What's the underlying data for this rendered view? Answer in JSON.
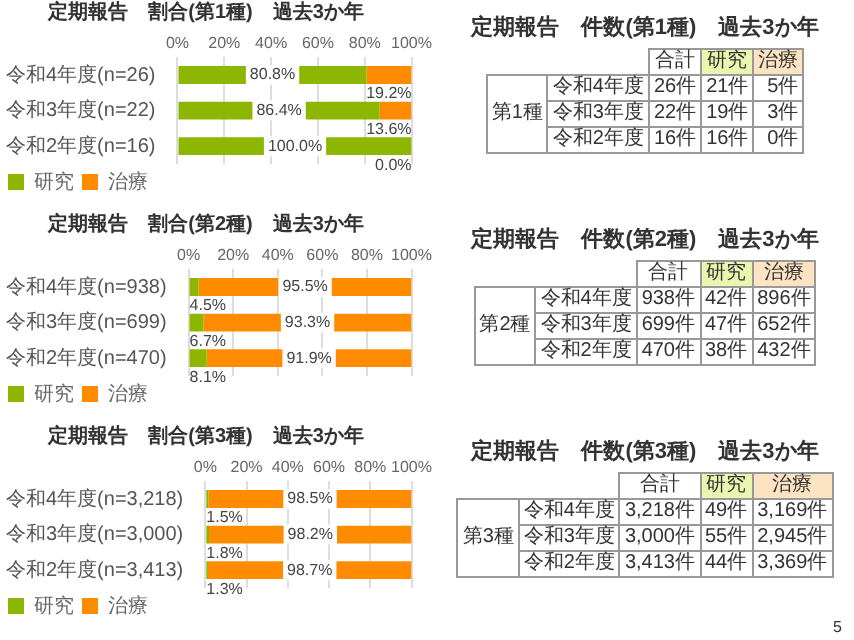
{
  "chart_data": [
    {
      "type": "bar",
      "title": "定期報告　割合(第1種)　過去3か年",
      "orientation": "horizontal",
      "stacked": true,
      "categories": [
        "令和4年度(n=26)",
        "令和3年度(n=22)",
        "令和2年度(n=16)"
      ],
      "series": [
        {
          "name": "研究",
          "color": "#8db600",
          "values": [
            80.8,
            86.4,
            100.0
          ],
          "value_labels": [
            "80.8%",
            "86.4%",
            "100.0%"
          ]
        },
        {
          "name": "治療",
          "color": "#ff8c00",
          "values": [
            19.2,
            13.6,
            0.0
          ],
          "value_labels": [
            "19.2%",
            "13.6%",
            "0.0%"
          ]
        }
      ],
      "xlim": [
        0,
        100
      ],
      "xticks": [
        {
          "value": 0,
          "label": "0%"
        },
        {
          "value": 20,
          "label": "20%"
        },
        {
          "value": 40,
          "label": "40%"
        },
        {
          "value": 60,
          "label": "60%"
        },
        {
          "value": 80,
          "label": "80%"
        },
        {
          "value": 100,
          "label": "100%"
        }
      ],
      "grid": "x",
      "legend": "bottom left"
    },
    {
      "type": "other",
      "title": "定期報告　件数(第1種)　過去3か年",
      "ylabel": "第1種",
      "categories": [
        "合計",
        "研究",
        "治療"
      ],
      "colors": [
        null,
        "#eaf5b0",
        "#fde3c2"
      ],
      "y_categories": [
        "令和4年度",
        "令和3年度",
        "令和2年度"
      ],
      "cell_labels": [
        [
          "26件",
          "21件",
          "5件"
        ],
        [
          "22件",
          "19件",
          "3件"
        ],
        [
          "16件",
          "16件",
          "0件"
        ]
      ]
    },
    {
      "type": "bar",
      "title": "定期報告　割合(第2種)　過去3か年",
      "orientation": "horizontal",
      "stacked": true,
      "categories": [
        "令和4年度(n=938)",
        "令和3年度(n=699)",
        "令和2年度(n=470)"
      ],
      "series": [
        {
          "name": "研究",
          "color": "#8db600",
          "values": [
            4.5,
            6.7,
            8.1
          ],
          "value_labels": [
            "4.5%",
            "6.7%",
            "8.1%"
          ]
        },
        {
          "name": "治療",
          "color": "#ff8c00",
          "values": [
            95.5,
            93.3,
            91.9
          ],
          "value_labels": [
            "95.5%",
            "93.3%",
            "91.9%"
          ]
        }
      ],
      "xlim": [
        0,
        100
      ],
      "xticks": [
        {
          "value": 0,
          "label": "0%"
        },
        {
          "value": 20,
          "label": "20%"
        },
        {
          "value": 40,
          "label": "40%"
        },
        {
          "value": 60,
          "label": "60%"
        },
        {
          "value": 80,
          "label": "80%"
        },
        {
          "value": 100,
          "label": "100%"
        }
      ],
      "grid": "x",
      "legend": "bottom left"
    },
    {
      "type": "other",
      "title": "定期報告　件数(第2種)　過去3か年",
      "ylabel": "第2種",
      "categories": [
        "合計",
        "研究",
        "治療"
      ],
      "colors": [
        null,
        "#eaf5b0",
        "#fde3c2"
      ],
      "y_categories": [
        "令和4年度",
        "令和3年度",
        "令和2年度"
      ],
      "cell_labels": [
        [
          "938件",
          "42件",
          "896件"
        ],
        [
          "699件",
          "47件",
          "652件"
        ],
        [
          "470件",
          "38件",
          "432件"
        ]
      ]
    },
    {
      "type": "bar",
      "title": "定期報告　割合(第3種)　過去3か年",
      "orientation": "horizontal",
      "stacked": true,
      "categories": [
        "令和4年度(n=3,218)",
        "令和3年度(n=3,000)",
        "令和2年度(n=3,413)"
      ],
      "series": [
        {
          "name": "研究",
          "color": "#8db600",
          "values": [
            1.5,
            1.8,
            1.3
          ],
          "value_labels": [
            "1.5%",
            "1.8%",
            "1.3%"
          ]
        },
        {
          "name": "治療",
          "color": "#ff8c00",
          "values": [
            98.5,
            98.2,
            98.7
          ],
          "value_labels": [
            "98.5%",
            "98.2%",
            "98.7%"
          ]
        }
      ],
      "xlim": [
        0,
        100
      ],
      "xticks": [
        {
          "value": 0,
          "label": "0%"
        },
        {
          "value": 20,
          "label": "20%"
        },
        {
          "value": 40,
          "label": "40%"
        },
        {
          "value": 60,
          "label": "60%"
        },
        {
          "value": 80,
          "label": "80%"
        },
        {
          "value": 100,
          "label": "100%"
        }
      ],
      "grid": "x",
      "legend": "bottom left"
    },
    {
      "type": "other",
      "title": "定期報告　件数(第3種)　過去3か年",
      "ylabel": "第3種",
      "categories": [
        "合計",
        "研究",
        "治療"
      ],
      "colors": [
        null,
        "#eaf5b0",
        "#fde3c2"
      ],
      "y_categories": [
        "令和4年度",
        "令和3年度",
        "令和2年度"
      ],
      "cell_labels": [
        [
          "3,218件",
          "49件",
          "3,169件"
        ],
        [
          "3,000件",
          "55件",
          "2,945件"
        ],
        [
          "3,413件",
          "44件",
          "3,369件"
        ]
      ],
      "annotations": [
        "5"
      ]
    }
  ]
}
